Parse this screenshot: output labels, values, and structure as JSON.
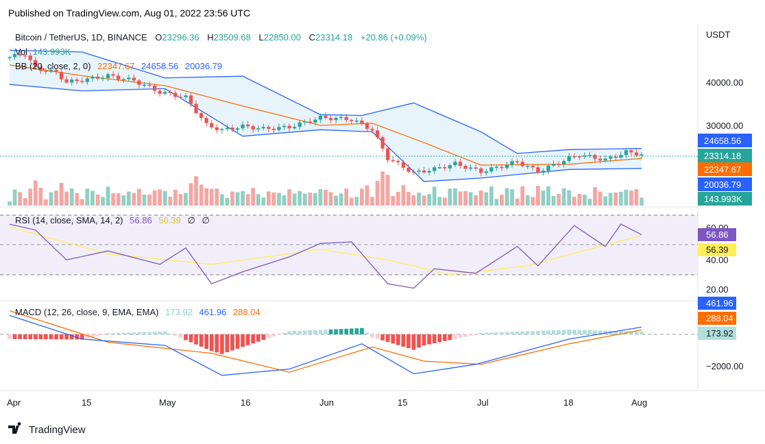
{
  "published": "Published on TradingView.com, Aug 01, 2022 23:56 UTC",
  "brand": {
    "name": "TradingView"
  },
  "colors": {
    "up": "#26a69a",
    "down": "#ef5350",
    "bb_band": "#2962ff",
    "bb_basis": "#ff6d00",
    "bb_fill": "#e8f4fc",
    "rsi": "#7e57c2",
    "rsi_ma": "#ffee58",
    "rsi_bg": "#ede7f6",
    "macd": "#2962ff",
    "signal": "#ff6d00",
    "vol_up": "#8fd0c3",
    "vol_down": "#f4a6a3"
  },
  "symbol_line": {
    "name": "Bitcoin / TetherUS, 1D, BINANCE",
    "o_label": "O",
    "o": "23296.36",
    "h_label": "H",
    "h": "23509.68",
    "l_label": "L",
    "l": "22850.00",
    "c_label": "C",
    "c": "23314.18",
    "change": "+20.86 (+0.09%)"
  },
  "vol_legend": {
    "label": "Vol",
    "value": "143.993K"
  },
  "bb_legend": {
    "label": "BB (20, close, 2, 0)",
    "basis": "22347.67",
    "upper": "24658.56",
    "lower": "20036.79"
  },
  "rsi_legend": {
    "label": "RSI (14, close, SMA, 14, 2)",
    "rsi": "56.86",
    "ma": "56.39",
    "z1": "∅",
    "z2": "∅"
  },
  "macd_legend": {
    "label": "MACD (12, 26, close, 9, EMA, EMA)",
    "hist": "173.92",
    "macd": "461.96",
    "signal": "288.04"
  },
  "price_axis": {
    "unit": "USDT",
    "ticks": [
      "40000.00",
      "30000.00"
    ]
  },
  "rsi_axis": {
    "ticks": [
      "60.00",
      "40.00",
      "20.00"
    ]
  },
  "macd_axis": {
    "ticks": [
      "−2000.00"
    ]
  },
  "time_axis": {
    "labels": [
      "Apr",
      "15",
      "May",
      "16",
      "Jun",
      "15",
      "Jul",
      "18",
      "Aug"
    ]
  },
  "price_badges": {
    "upper": "24658.56",
    "close": "23314.18",
    "basis": "22347.67",
    "lower": "20036.79",
    "volume": "143.993K"
  },
  "rsi_badges": {
    "rsi": "56.86",
    "ma": "56.39"
  },
  "macd_badges": {
    "macd": "461.96",
    "signal": "288.04",
    "hist": "173.92"
  },
  "chart_data": {
    "type": "candlestick",
    "title": "Bitcoin / TetherUS, 1D, BINANCE",
    "x_range": [
      "2022-04-01",
      "2022-08-01"
    ],
    "y_label": "USDT",
    "close_series": {
      "points": [
        [
          "2022-04-01",
          45800
        ],
        [
          "2022-04-04",
          46600
        ],
        [
          "2022-04-06",
          43200
        ],
        [
          "2022-04-10",
          42200
        ],
        [
          "2022-04-12",
          40000
        ],
        [
          "2022-04-15",
          40500
        ],
        [
          "2022-04-20",
          41500
        ],
        [
          "2022-04-25",
          40400
        ],
        [
          "2022-04-30",
          37700
        ],
        [
          "2022-05-05",
          36500
        ],
        [
          "2022-05-09",
          30100
        ],
        [
          "2022-05-12",
          28900
        ],
        [
          "2022-05-16",
          29800
        ],
        [
          "2022-05-20",
          29200
        ],
        [
          "2022-05-25",
          29600
        ],
        [
          "2022-05-31",
          31800
        ],
        [
          "2022-06-06",
          31400
        ],
        [
          "2022-06-10",
          29000
        ],
        [
          "2022-06-13",
          22400
        ],
        [
          "2022-06-18",
          19000
        ],
        [
          "2022-06-22",
          19900
        ],
        [
          "2022-06-26",
          21100
        ],
        [
          "2022-07-01",
          19300
        ],
        [
          "2022-07-04",
          20200
        ],
        [
          "2022-07-08",
          21600
        ],
        [
          "2022-07-12",
          19300
        ],
        [
          "2022-07-18",
          22400
        ],
        [
          "2022-07-20",
          23200
        ],
        [
          "2022-07-25",
          22000
        ],
        [
          "2022-07-29",
          23800
        ],
        [
          "2022-08-01",
          23314
        ]
      ]
    },
    "bollinger": {
      "upper": [
        [
          "2022-04-01",
          47400
        ],
        [
          "2022-04-15",
          47000
        ],
        [
          "2022-05-01",
          41000
        ],
        [
          "2022-05-16",
          41400
        ],
        [
          "2022-05-31",
          32500
        ],
        [
          "2022-06-08",
          32300
        ],
        [
          "2022-06-18",
          35200
        ],
        [
          "2022-07-01",
          28500
        ],
        [
          "2022-07-08",
          23500
        ],
        [
          "2022-07-18",
          24400
        ],
        [
          "2022-08-01",
          24658.56
        ]
      ],
      "basis": [
        [
          "2022-04-01",
          44000
        ],
        [
          "2022-04-15",
          41500
        ],
        [
          "2022-05-01",
          39200
        ],
        [
          "2022-05-16",
          34500
        ],
        [
          "2022-05-31",
          30000
        ],
        [
          "2022-06-10",
          30500
        ],
        [
          "2022-06-20",
          26000
        ],
        [
          "2022-07-01",
          20800
        ],
        [
          "2022-07-18",
          21000
        ],
        [
          "2022-08-01",
          22347.67
        ]
      ],
      "lower": [
        [
          "2022-04-01",
          39500
        ],
        [
          "2022-04-15",
          38000
        ],
        [
          "2022-05-01",
          38500
        ],
        [
          "2022-05-16",
          27500
        ],
        [
          "2022-05-31",
          29000
        ],
        [
          "2022-06-10",
          28500
        ],
        [
          "2022-06-20",
          17000
        ],
        [
          "2022-07-01",
          17800
        ],
        [
          "2022-07-18",
          19800
        ],
        [
          "2022-08-01",
          20036.79
        ]
      ]
    },
    "volume_last": 143993,
    "rsi": {
      "series": [
        [
          "2022-04-01",
          64
        ],
        [
          "2022-04-06",
          60
        ],
        [
          "2022-04-12",
          40
        ],
        [
          "2022-04-20",
          46
        ],
        [
          "2022-04-30",
          37
        ],
        [
          "2022-05-05",
          48
        ],
        [
          "2022-05-10",
          24
        ],
        [
          "2022-05-16",
          32
        ],
        [
          "2022-05-25",
          42
        ],
        [
          "2022-05-31",
          51
        ],
        [
          "2022-06-06",
          52
        ],
        [
          "2022-06-13",
          24
        ],
        [
          "2022-06-18",
          21
        ],
        [
          "2022-06-22",
          34
        ],
        [
          "2022-06-30",
          31
        ],
        [
          "2022-07-08",
          49
        ],
        [
          "2022-07-12",
          36
        ],
        [
          "2022-07-19",
          63
        ],
        [
          "2022-07-25",
          49
        ],
        [
          "2022-07-28",
          64
        ],
        [
          "2022-08-01",
          56.86
        ]
      ],
      "ma": [
        [
          "2022-04-01",
          62
        ],
        [
          "2022-04-20",
          44
        ],
        [
          "2022-05-10",
          37
        ],
        [
          "2022-05-31",
          47
        ],
        [
          "2022-06-13",
          40
        ],
        [
          "2022-06-25",
          30
        ],
        [
          "2022-07-10",
          36
        ],
        [
          "2022-07-25",
          50
        ],
        [
          "2022-08-01",
          56.39
        ]
      ],
      "bands": [
        70,
        50,
        30
      ],
      "ylim": [
        15,
        72
      ]
    },
    "macd": {
      "macd": [
        [
          "2022-04-01",
          1200
        ],
        [
          "2022-04-15",
          -300
        ],
        [
          "2022-05-01",
          -700
        ],
        [
          "2022-05-12",
          -2600
        ],
        [
          "2022-05-25",
          -2200
        ],
        [
          "2022-06-08",
          -600
        ],
        [
          "2022-06-18",
          -2500
        ],
        [
          "2022-06-30",
          -1900
        ],
        [
          "2022-07-18",
          -300
        ],
        [
          "2022-08-01",
          461.96
        ]
      ],
      "signal": [
        [
          "2022-04-01",
          1500
        ],
        [
          "2022-04-20",
          -500
        ],
        [
          "2022-05-10",
          -1200
        ],
        [
          "2022-05-25",
          -2400
        ],
        [
          "2022-06-10",
          -800
        ],
        [
          "2022-06-20",
          -1700
        ],
        [
          "2022-07-01",
          -1900
        ],
        [
          "2022-07-18",
          -600
        ],
        [
          "2022-08-01",
          288.04
        ]
      ],
      "histogram_last": 173.92,
      "ylim": [
        -2900,
        1800
      ]
    }
  }
}
